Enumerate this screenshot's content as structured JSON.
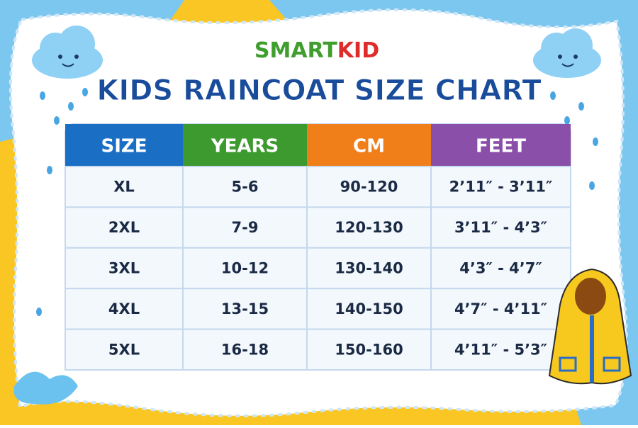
{
  "brand": {
    "part1": "SMART",
    "part2": "KID"
  },
  "header": {
    "title": "KIDS RAINCOAT SIZE CHART"
  },
  "table": {
    "columns": [
      "SIZE",
      "YEARS",
      "CM",
      "FEET"
    ],
    "rows": [
      [
        "XL",
        "5-6",
        "90-120",
        "2’11″ - 3’11″"
      ],
      [
        "2XL",
        "7-9",
        "120-130",
        "3’11″ - 4’3″"
      ],
      [
        "3XL",
        "10-12",
        "130-140",
        "4’3″ - 4’7″"
      ],
      [
        "4XL",
        "13-15",
        "140-150",
        "4’7″ - 4’11″"
      ],
      [
        "5XL",
        "16-18",
        "150-160",
        "4’11″ - 5’3″"
      ]
    ]
  }
}
